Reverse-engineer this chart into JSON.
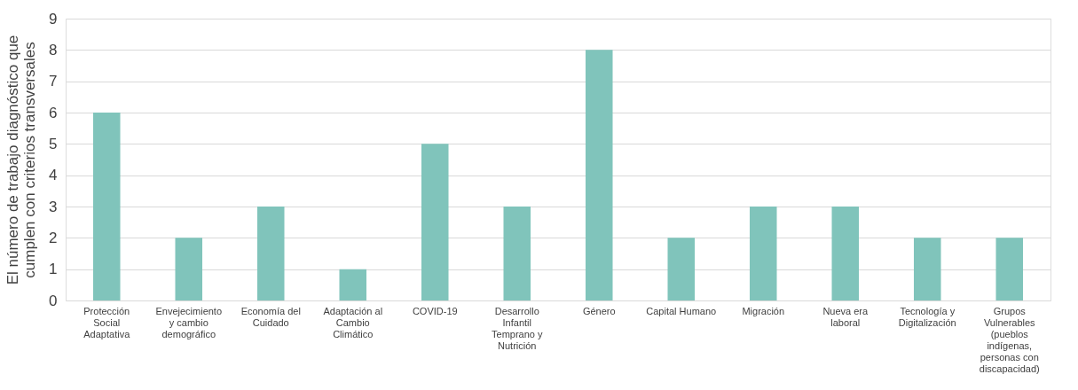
{
  "chart_data": {
    "type": "bar",
    "ylabel": "El número de trabajo diagnóstico que cumplen con criterios transversales",
    "categories": [
      "Protección Social Adaptativa",
      "Envejecimiento y cambio demográfico",
      "Economía del Cuidado",
      "Adaptación al Cambio Climático",
      "COVID-19",
      "Desarrollo Infantil Temprano y Nutrición",
      "Género",
      "Capital Humano",
      "Migración",
      "Nueva era laboral",
      "Tecnología y Digitalización",
      "Grupos Vulnerables (pueblos indígenas, personas con discapacidad)"
    ],
    "values": [
      6,
      2,
      3,
      1,
      5,
      3,
      8,
      2,
      3,
      3,
      2,
      2
    ],
    "color": "#80c4bb",
    "ylim": [
      0,
      9
    ],
    "yticks": [
      0,
      1,
      2,
      3,
      4,
      5,
      6,
      7,
      8,
      9
    ],
    "grid": "y"
  }
}
